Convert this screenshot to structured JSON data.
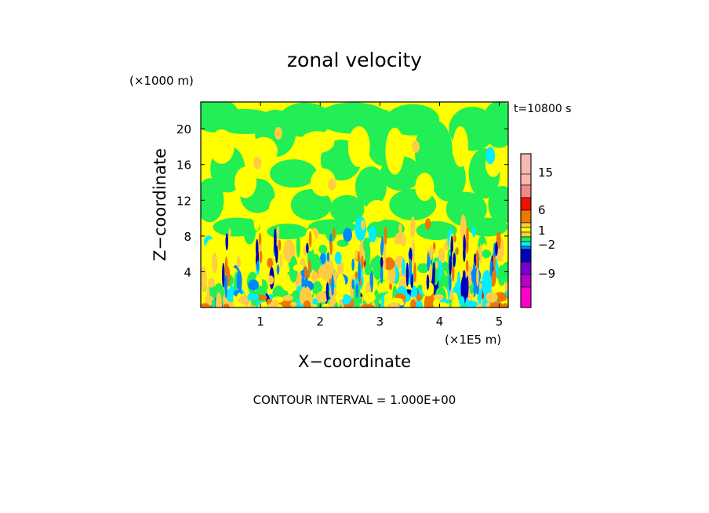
{
  "chart_data": {
    "type": "heatmap",
    "title": "zonal velocity",
    "time_label": "t=10800 s",
    "xlabel": "X−coordinate",
    "ylabel": "Z−coordinate",
    "x_unit": "(×1E5 m)",
    "y_unit": "(×1000 m)",
    "xlim": [
      0,
      5.15
    ],
    "ylim": [
      0,
      23
    ],
    "x_ticks": [
      "1",
      "2",
      "3",
      "4",
      "5"
    ],
    "y_ticks": [
      "4",
      "8",
      "12",
      "16",
      "20"
    ],
    "colorbar_labels": [
      "15",
      "6",
      "1",
      "−2",
      "−9"
    ],
    "footer": "CONTOUR INTERVAL = 1.000E+00",
    "colors": {
      "green": "#22ee55",
      "yellow": "#ffff00",
      "light_orange": "#ffcc44",
      "orange": "#ee7700",
      "red": "#ee1100",
      "pink_dark": "#f28a84",
      "pink_light": "#f8b8b0",
      "cyan": "#00eeff",
      "blue": "#0088ff",
      "dark_blue": "#0000bb",
      "purple": "#7700cc",
      "violet": "#bb00cc",
      "magenta": "#ff00cc"
    }
  }
}
